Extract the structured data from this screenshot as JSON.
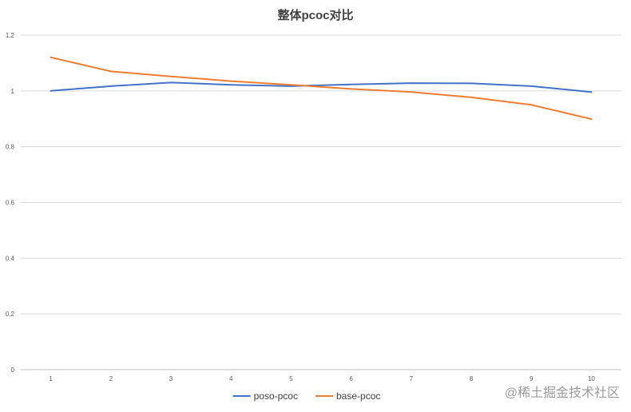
{
  "chart_data": {
    "type": "line",
    "title": "整体pcoc对比",
    "xlabel": "",
    "ylabel": "",
    "x": [
      1,
      2,
      3,
      4,
      5,
      6,
      7,
      8,
      9,
      10
    ],
    "x_tick_labels": [
      "1",
      "2",
      "3",
      "4",
      "5",
      "6",
      "7",
      "8",
      "9",
      "10"
    ],
    "ylim": [
      0,
      1.2
    ],
    "y_tick_labels": [
      "0",
      "0.2",
      "0.4",
      "0.6",
      "0.8",
      "1",
      "1.2"
    ],
    "y_tick_values": [
      0,
      0.2,
      0.4,
      0.6,
      0.8,
      1.0,
      1.2
    ],
    "grid": true,
    "legend_position": "bottom",
    "series": [
      {
        "name": "poso-pcoc",
        "color": "#4472c4",
        "values": [
          1.0,
          1.017,
          1.03,
          1.022,
          1.017,
          1.023,
          1.028,
          1.027,
          1.017,
          0.996
        ]
      },
      {
        "name": "base-pcoc",
        "color": "#ed7d31",
        "values": [
          1.12,
          1.07,
          1.052,
          1.035,
          1.022,
          1.007,
          0.996,
          0.977,
          0.95,
          0.899
        ]
      }
    ]
  },
  "watermark": "@稀土掘金技术社区"
}
